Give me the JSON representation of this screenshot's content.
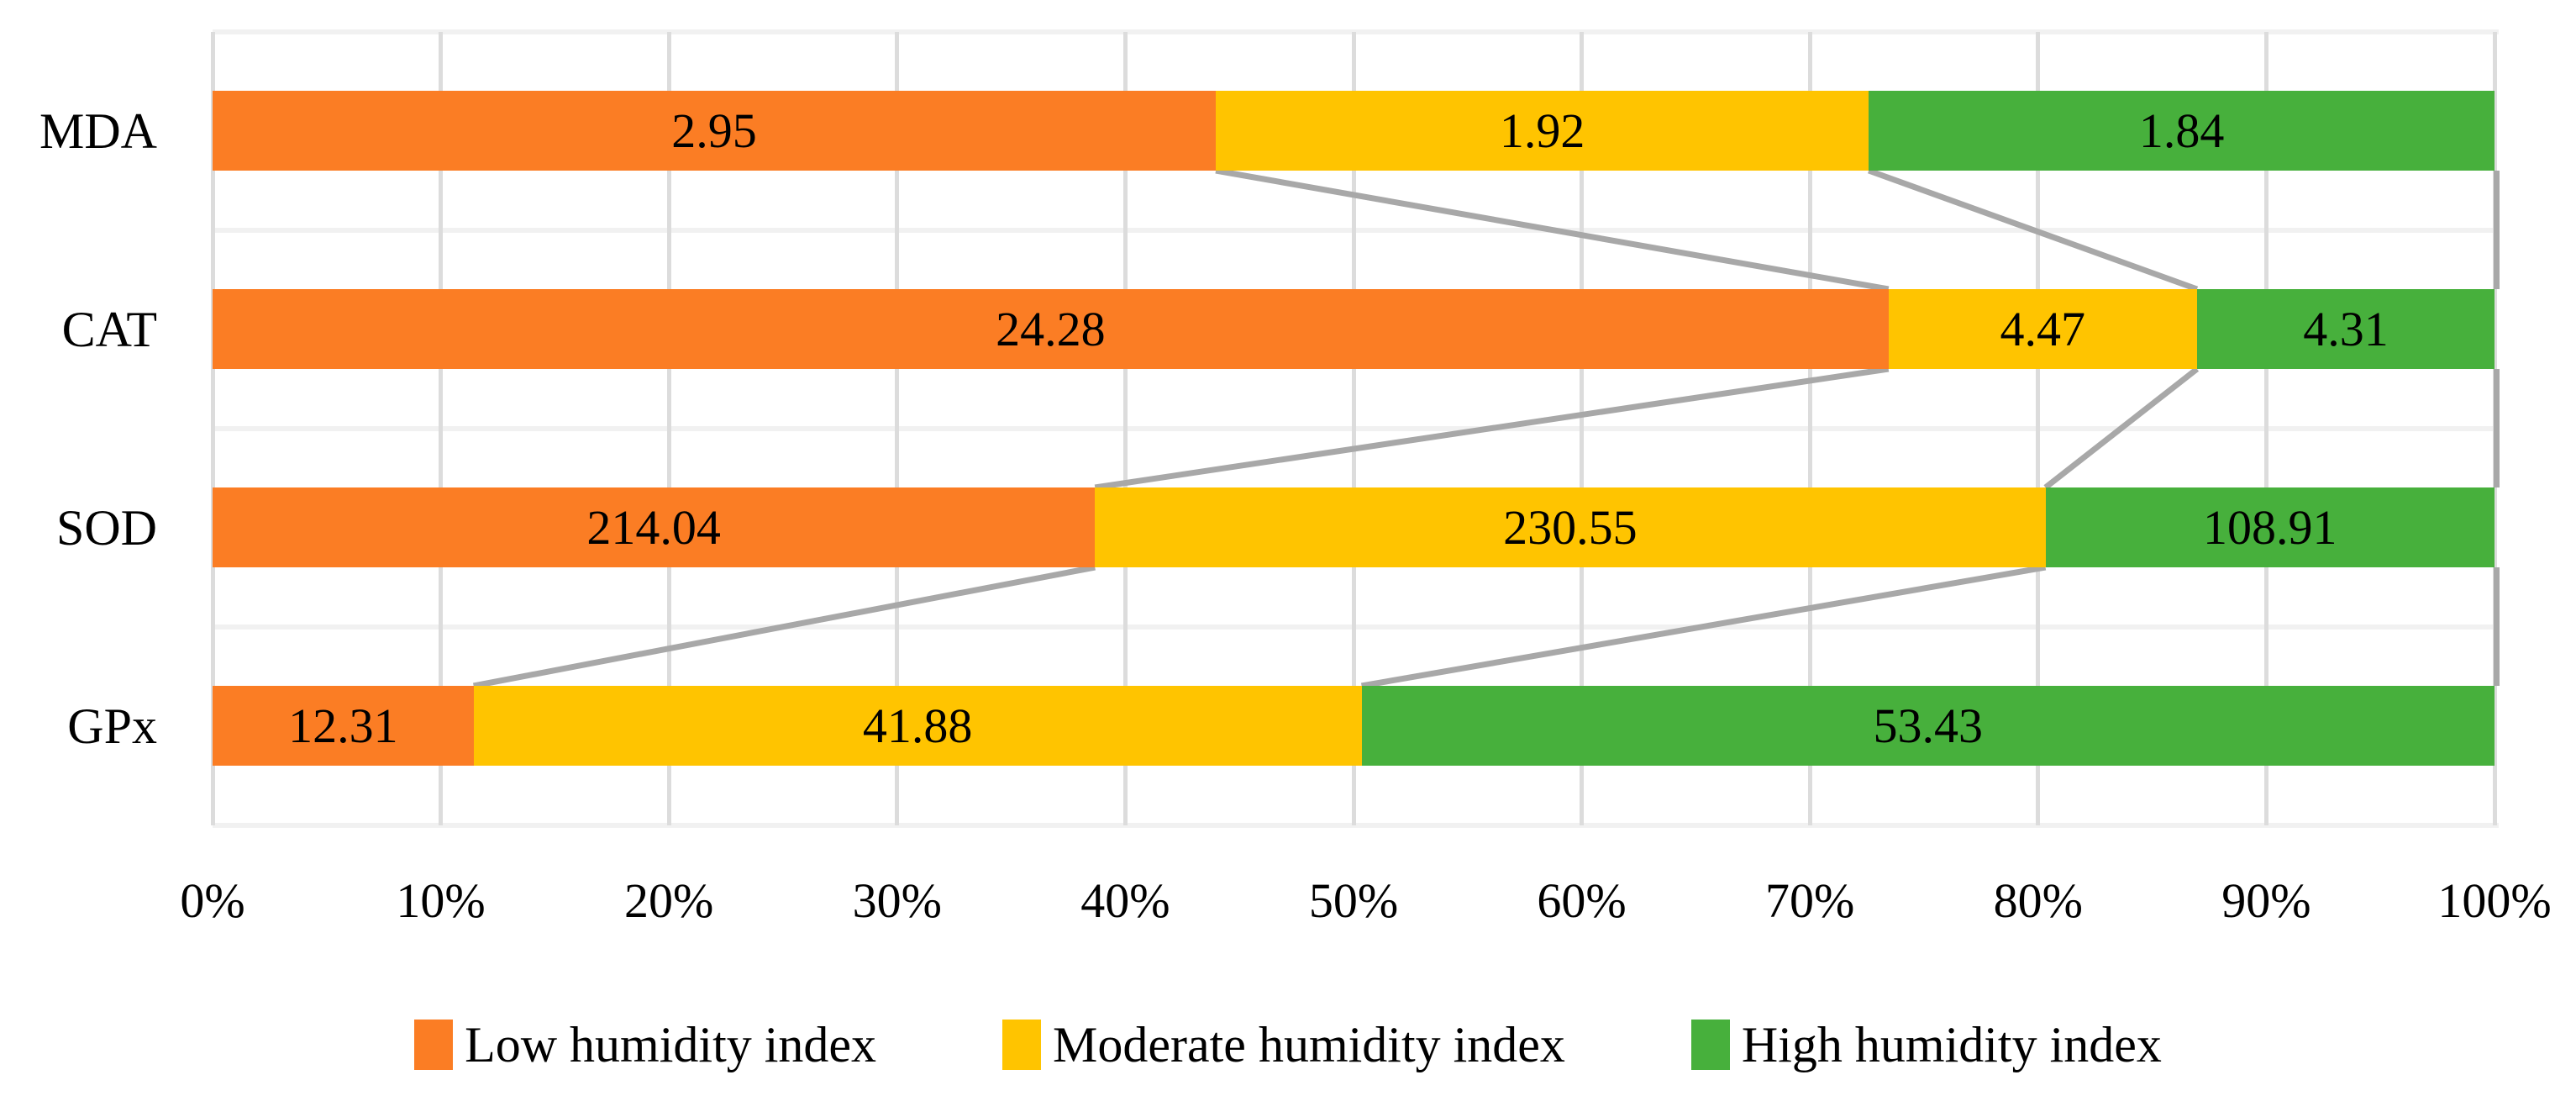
{
  "chart_data": {
    "type": "bar",
    "variant": "100-percent-stacked-horizontal",
    "title": "",
    "categories": [
      "MDA",
      "CAT",
      "SOD",
      "GPx"
    ],
    "series": [
      {
        "name": "Low humidity index",
        "color": "#FB7D24",
        "values": [
          2.95,
          24.28,
          214.04,
          12.31
        ]
      },
      {
        "name": "Moderate humidity index",
        "color": "#FFC400",
        "values": [
          1.92,
          4.47,
          230.55,
          41.88
        ]
      },
      {
        "name": "High humidity index",
        "color": "#47B03C",
        "values": [
          1.84,
          4.31,
          108.91,
          53.43
        ]
      }
    ],
    "data_labels": {
      "MDA": [
        "2.95",
        "1.92",
        "1.84"
      ],
      "CAT": [
        "24.28",
        "4.47",
        "4.31"
      ],
      "SOD": [
        "214.04",
        "230.55",
        "108.91"
      ],
      "GPx": [
        "12.31",
        "41.88",
        "53.43"
      ]
    },
    "x_axis": {
      "tick_labels": [
        "0%",
        "10%",
        "20%",
        "30%",
        "40%",
        "50%",
        "60%",
        "70%",
        "80%",
        "90%",
        "100%"
      ],
      "range_percent": [
        0,
        100
      ]
    },
    "legend": {
      "position": "bottom",
      "entries": [
        "Low humidity index",
        "Moderate humidity index",
        "High humidity index"
      ]
    },
    "grid": {
      "vertical_gridlines": true,
      "horizontal_gridlines": true,
      "series_connector_lines": true
    },
    "colors": {
      "vertical_gridline": "#DCDCDC",
      "horizontal_gridline": "#F1F1F1",
      "series_connector_line": "#A8A8A8",
      "text": "#000000",
      "background": "#FFFFFF"
    }
  }
}
